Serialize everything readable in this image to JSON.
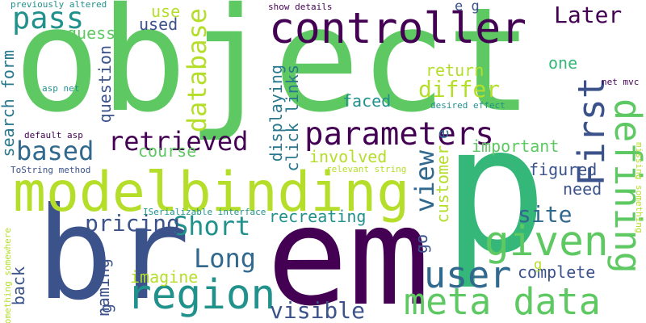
{
  "words": [
    {
      "text": "object",
      "color": "#5ec962"
    },
    {
      "text": "p",
      "color": "#35b779"
    },
    {
      "text": "em",
      "color": "#440154"
    },
    {
      "text": "br",
      "color": "#3b528b"
    },
    {
      "text": "modelbinding",
      "color": "#b5de2b"
    },
    {
      "text": "controller",
      "color": "#440154"
    },
    {
      "text": "meta data",
      "color": "#5ec962"
    },
    {
      "text": "region",
      "color": "#21918c"
    },
    {
      "text": "given",
      "color": "#5ec962"
    },
    {
      "text": "parameters",
      "color": "#440154"
    },
    {
      "text": "user",
      "color": "#31688e"
    },
    {
      "text": "defining",
      "color": "#5ec962"
    },
    {
      "text": "First",
      "color": "#3b528b"
    },
    {
      "text": "pass",
      "color": "#21918c"
    },
    {
      "text": "based",
      "color": "#31688e"
    },
    {
      "text": "retrieved",
      "color": "#440154"
    },
    {
      "text": "database",
      "color": "#b5de2b"
    },
    {
      "text": "Short",
      "color": "#21918c"
    },
    {
      "text": "Long",
      "color": "#31688e"
    },
    {
      "text": "view",
      "color": "#31688e"
    },
    {
      "text": "pricing",
      "color": "#3b528b"
    },
    {
      "text": "Later",
      "color": "#440154"
    },
    {
      "text": "differ",
      "color": "#b5de2b"
    },
    {
      "text": "site",
      "color": "#31688e"
    },
    {
      "text": "visible",
      "color": "#3b528b"
    },
    {
      "text": "displaying",
      "color": "#2a788e"
    },
    {
      "text": "click links",
      "color": "#2a788e"
    },
    {
      "text": "search form",
      "color": "#2a788e"
    },
    {
      "text": "important",
      "color": "#5ec962"
    },
    {
      "text": "recreating",
      "color": "#21918c"
    },
    {
      "text": "figured",
      "color": "#3b528b"
    },
    {
      "text": "complete",
      "color": "#3b528b"
    },
    {
      "text": "course",
      "color": "#5ec962"
    },
    {
      "text": "involved",
      "color": "#b5de2b"
    },
    {
      "text": "customer",
      "color": "#b5de2b"
    },
    {
      "text": "return",
      "color": "#b5de2b"
    },
    {
      "text": "question",
      "color": "#3b528b"
    },
    {
      "text": "imagine",
      "color": "#b5de2b"
    },
    {
      "text": "need",
      "color": "#3b528b"
    },
    {
      "text": "faced",
      "color": "#21918c"
    },
    {
      "text": "used",
      "color": "#3b528b"
    },
    {
      "text": "use",
      "color": "#b5de2b"
    },
    {
      "text": "guess",
      "color": "#5ec962"
    },
    {
      "text": "naming",
      "color": "#3b528b"
    },
    {
      "text": "back",
      "color": "#3b528b"
    },
    {
      "text": "one",
      "color": "#35b779"
    },
    {
      "text": "go",
      "color": "#3b528b"
    },
    {
      "text": "e",
      "color": "#31688e"
    },
    {
      "text": "g",
      "color": "#3b528b"
    },
    {
      "text": "e g",
      "color": "#3b528b"
    },
    {
      "text": "g",
      "color": "#b5de2b"
    },
    {
      "text": "previously altered",
      "color": "#21918c"
    },
    {
      "text": "show details",
      "color": "#440154"
    },
    {
      "text": "asp net",
      "color": "#21918c"
    },
    {
      "text": "desired effect",
      "color": "#21918c"
    },
    {
      "text": "net mvc",
      "color": "#440154"
    },
    {
      "text": "default asp",
      "color": "#440154"
    },
    {
      "text": "ToString method",
      "color": "#3b528b"
    },
    {
      "text": "relevant string",
      "color": "#b5de2b"
    },
    {
      "text": "ISerializable interface",
      "color": "#21918c"
    },
    {
      "text": "something somewhere",
      "color": "#b5de2b"
    },
    {
      "text": "missing something",
      "color": "#b5de2b"
    }
  ]
}
